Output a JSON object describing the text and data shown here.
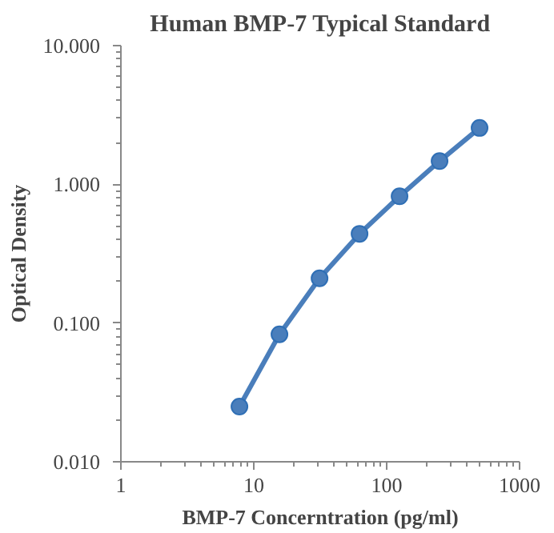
{
  "chart_data": {
    "type": "line",
    "title": "Human BMP-7 Typical Standard",
    "xlabel": "BMP-7 Concerntration (pg/ml)",
    "ylabel": "Optical Density",
    "log": "xy",
    "marker": "circle",
    "grid": false,
    "x": [
      7.8,
      15.6,
      31.25,
      62.5,
      125,
      250,
      500
    ],
    "series": [
      {
        "color": "#4a7ebb",
        "values": [
          0.025,
          0.083,
          0.21,
          0.44,
          0.82,
          1.47,
          2.55
        ]
      }
    ],
    "xlim": [
      1,
      1000
    ],
    "xticks": [
      1,
      10,
      100,
      1000
    ],
    "ylim": [
      0.01,
      10
    ],
    "yticks": [
      {
        "value": 0.01,
        "label": "0.010"
      },
      {
        "value": 0.1,
        "label": "0.100"
      },
      {
        "value": 1,
        "label": "1.000"
      },
      {
        "value": 10,
        "label": "10.000"
      }
    ]
  }
}
